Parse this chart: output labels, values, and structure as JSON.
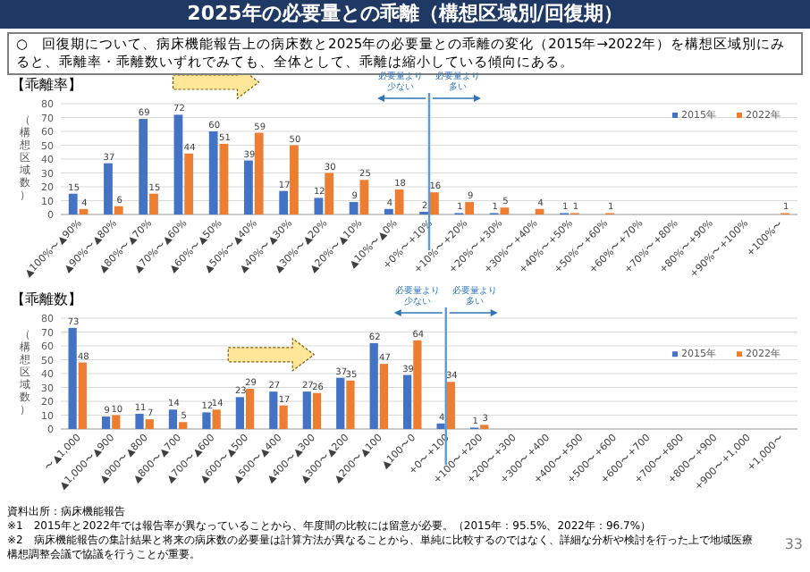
{
  "chart_data": [
    {
      "type": "other",
      "title": "2025年の必要量との乖離（構想区域別/回復期）",
      "subtitle": "○　回復期について、病床機能報告上の病床数と2025年の必要量との乖離の変化（2015年→2022年）を構想区域別にみると、乖離率・乖離数いずれでみても、全体として、乖離は縮小している傾向にある。",
      "annotations": [
        "資料出所：病床機能報告",
        "※1　2015年と2022年では報告率が異なっていることから、年度間の比較には留意が必要。（2015年：95.5%、2022年：96.7%）",
        "※2　病床機能報告の集計結果と将来の病床数の必要量は計算方法が異なることから、単純に比較するのではなく、詳細な分析や検討を行った上で地域医療構想調整会議で協議を行うことが重要。",
        "33"
      ]
    },
    {
      "type": "bar",
      "title": "【乖離率】",
      "ylabel": "（構想区域数）",
      "categories": [
        "▲100%〜▲90%",
        "▲90%〜▲80%",
        "▲80%〜▲70%",
        "▲70%〜▲60%",
        "▲60%〜▲50%",
        "▲50%〜▲40%",
        "▲40%〜▲30%",
        "▲30%〜▲20%",
        "▲20%〜▲10%",
        "▲10%〜▲0%",
        "+0%〜+10%",
        "+10%〜+20%",
        "+20%〜+30%",
        "+30%〜+40%",
        "+40%〜+50%",
        "+50%〜+60%",
        "+60%〜+70%",
        "+70%〜+80%",
        "+80%〜+90%",
        "+90%〜+100%",
        "+100%〜"
      ],
      "series": [
        {
          "name": "2015年",
          "color": "#4472c4",
          "values": [
            15,
            37,
            69,
            72,
            60,
            39,
            17,
            12,
            9,
            4,
            2,
            1,
            1,
            null,
            1,
            null,
            null,
            null,
            null,
            null,
            null
          ]
        },
        {
          "name": "2022年",
          "color": "#ed7d31",
          "values": [
            4,
            6,
            15,
            44,
            51,
            59,
            50,
            30,
            25,
            18,
            16,
            9,
            5,
            4,
            1,
            1,
            null,
            null,
            null,
            null,
            1
          ]
        }
      ],
      "ylim": [
        0,
        80
      ],
      "yticks": [
        0,
        10,
        20,
        30,
        40,
        50,
        60,
        70,
        80
      ],
      "grid": "y",
      "legend": "top right",
      "data_labels": true,
      "ref_lines": [
        {
          "axis": "x",
          "value": "+0%〜+10%",
          "color": "#5b9bd5"
        }
      ],
      "annotations": [
        "必要量より少ない",
        "必要量より多い"
      ]
    },
    {
      "type": "bar",
      "title": "【乖離数】",
      "ylabel": "（構想区域数）",
      "categories": [
        "〜▲1,000",
        "▲1,000〜▲900",
        "▲900〜▲800",
        "▲800〜▲700",
        "▲700〜▲600",
        "▲600〜▲500",
        "▲500〜▲400",
        "▲400〜▲300",
        "▲300〜▲200",
        "▲200〜▲100",
        "▲100〜0",
        "+0〜+100",
        "+100〜+200",
        "+200〜+300",
        "+300〜+400",
        "+400〜+500",
        "+500〜+600",
        "+600〜+700",
        "+700〜+800",
        "+800〜+900",
        "+900〜+1,000",
        "+1,000〜"
      ],
      "series": [
        {
          "name": "2015年",
          "color": "#4472c4",
          "values": [
            73,
            9,
            11,
            14,
            12,
            23,
            27,
            27,
            37,
            62,
            39,
            4,
            1,
            null,
            null,
            null,
            null,
            null,
            null,
            null,
            null,
            null
          ]
        },
        {
          "name": "2022年",
          "color": "#ed7d31",
          "values": [
            48,
            10,
            7,
            5,
            14,
            29,
            17,
            26,
            35,
            47,
            64,
            34,
            3,
            null,
            null,
            null,
            null,
            null,
            null,
            null,
            null,
            null
          ]
        }
      ],
      "ylim": [
        0,
        80
      ],
      "yticks": [
        0,
        10,
        20,
        30,
        40,
        50,
        60,
        70,
        80
      ],
      "grid": "y",
      "legend": "right",
      "data_labels": true,
      "ref_lines": [
        {
          "axis": "x",
          "value": "+0〜+100",
          "color": "#5b9bd5"
        }
      ],
      "annotations": [
        "必要量より少ない",
        "必要量より多い"
      ]
    }
  ]
}
